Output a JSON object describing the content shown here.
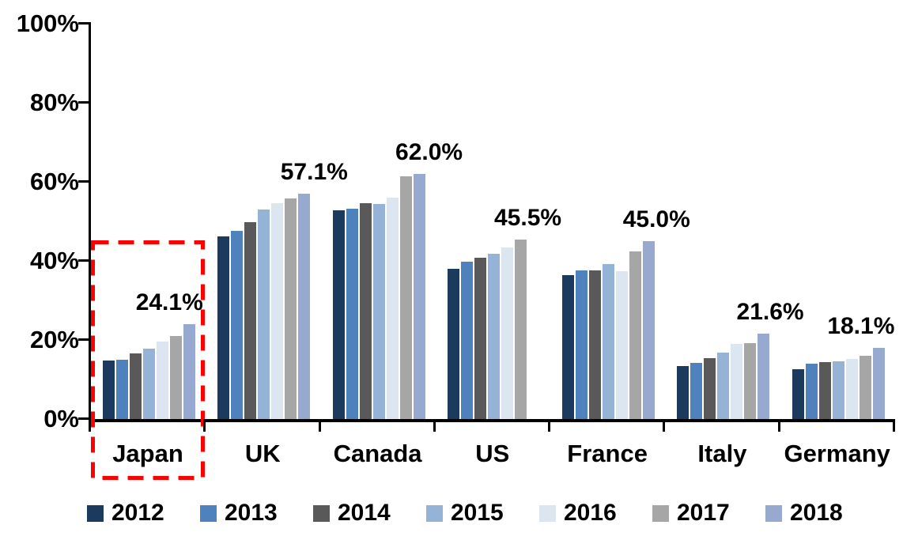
{
  "chart_data": {
    "type": "bar",
    "title": "",
    "xlabel": "",
    "ylabel": "",
    "background_color": "#FFFFFF",
    "axis_color": "#000000",
    "grid": false,
    "categories": [
      "Japan",
      "UK",
      "Canada",
      "US",
      "France",
      "Italy",
      "Germany"
    ],
    "series": [
      {
        "name": "2012",
        "color": "#1C3A5E",
        "values": [
          14.8,
          46.3,
          52.9,
          38.1,
          36.5,
          13.4,
          12.7
        ]
      },
      {
        "name": "2013",
        "color": "#4F81BD",
        "values": [
          15.0,
          47.7,
          53.3,
          39.9,
          37.7,
          14.2,
          14.1
        ]
      },
      {
        "name": "2014",
        "color": "#595959",
        "values": [
          16.6,
          49.9,
          54.7,
          40.9,
          37.6,
          15.4,
          14.4
        ]
      },
      {
        "name": "2015",
        "color": "#95B3D7",
        "values": [
          17.8,
          53.0,
          54.5,
          41.9,
          39.3,
          16.9,
          14.7
        ]
      },
      {
        "name": "2016",
        "color": "#DCE6F1",
        "values": [
          19.7,
          54.7,
          56.0,
          43.5,
          37.5,
          19.0,
          15.3
        ]
      },
      {
        "name": "2017",
        "color": "#A6A6A6",
        "values": [
          21.0,
          55.8,
          61.5,
          45.5,
          42.4,
          19.2,
          16.0
        ]
      },
      {
        "name": "2018",
        "color": "#97A9CE",
        "values": [
          24.1,
          57.1,
          62.0,
          null,
          45.0,
          21.6,
          18.1
        ]
      }
    ],
    "data_labels": [
      {
        "category": "Japan",
        "series": "2018",
        "value": 24.1,
        "text": "24.1%"
      },
      {
        "category": "UK",
        "series": "2018",
        "value": 57.1,
        "text": "57.1%"
      },
      {
        "category": "Canada",
        "series": "2018",
        "value": 62.0,
        "text": "62.0%"
      },
      {
        "category": "US",
        "series": "2017",
        "value": 45.5,
        "text": "45.5%"
      },
      {
        "category": "France",
        "series": "2018",
        "value": 45.0,
        "text": "45.0%"
      },
      {
        "category": "Italy",
        "series": "2018",
        "value": 21.6,
        "text": "21.6%"
      },
      {
        "category": "Germany",
        "series": "2018",
        "value": 18.1,
        "text": "18.1%"
      }
    ],
    "y_axis": {
      "ticks": [
        "0%",
        "20%",
        "40%",
        "60%",
        "80%",
        "100%"
      ],
      "min": 0,
      "max": 100,
      "tick_step": 20
    },
    "legend": {
      "position": "bottom",
      "entries": [
        "2012",
        "2013",
        "2014",
        "2015",
        "2016",
        "2017",
        "2018"
      ]
    },
    "annotation": {
      "type": "dashed-box",
      "target": "Japan",
      "color": "#FF0000",
      "description": "red dashed rectangle highlighting the Japan group and its axis label"
    }
  }
}
